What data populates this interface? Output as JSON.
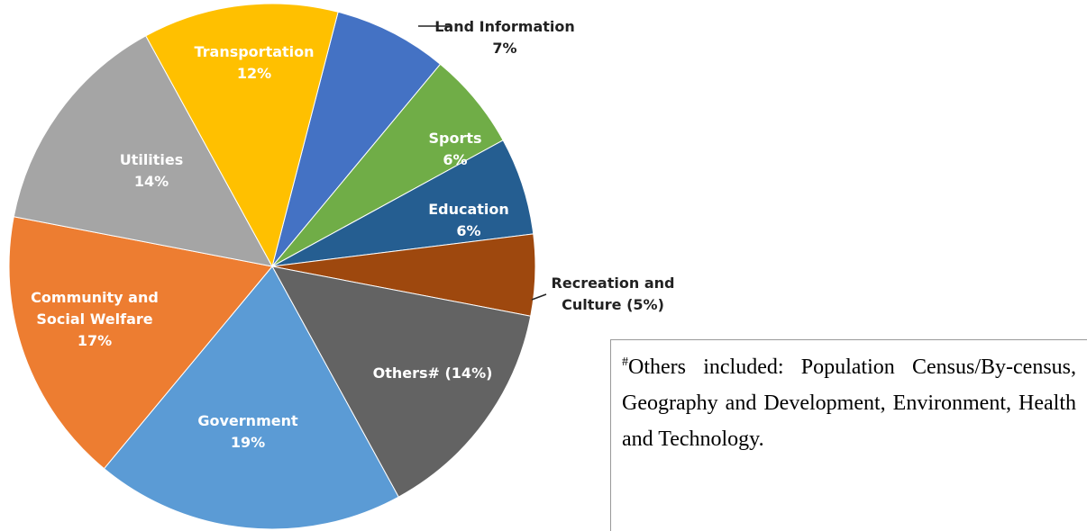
{
  "chart_data": {
    "type": "pie",
    "categories": [
      "Land Information",
      "Sports",
      "Education",
      "Recreation and Culture",
      "Others#",
      "Government",
      "Community and Social Welfare",
      "Utilities",
      "Transportation"
    ],
    "values": [
      7,
      6,
      6,
      5,
      14,
      19,
      17,
      14,
      12
    ],
    "value_labels": [
      "7%",
      "6%",
      "6%",
      "(5%)",
      "(14%)",
      "19%",
      "17%",
      "14%",
      "12%"
    ],
    "colors": [
      "#4472c4",
      "#70ad47",
      "#255e91",
      "#9e480e",
      "#636363",
      "#5b9bd5",
      "#ed7d31",
      "#a5a5a5",
      "#ffc000"
    ]
  },
  "footnote": {
    "marker": "#",
    "text": "Others included: Population Census/By-census, Geography and Development, Environment, Health and Technology."
  }
}
